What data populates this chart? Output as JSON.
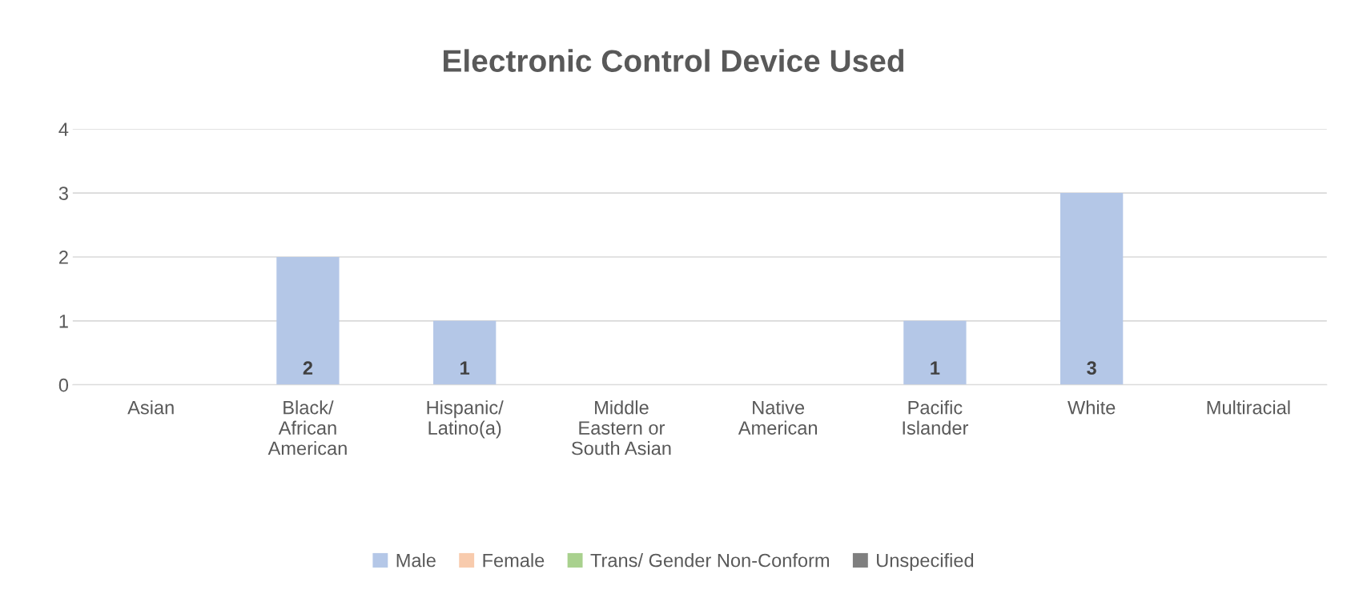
{
  "chart_data": {
    "type": "bar",
    "title": "Electronic Control Device Used",
    "categories": [
      "Asian",
      "Black/\nAfrican\nAmerican",
      "Hispanic/\nLatino(a)",
      "Middle\nEastern or\nSouth Asian",
      "Native\nAmerican",
      "Pacific\nIslander",
      "White",
      "Multiracial"
    ],
    "stacked": true,
    "series": [
      {
        "name": "Male",
        "color": "#b4c7e7",
        "values": [
          0,
          2,
          1,
          0,
          0,
          1,
          3,
          0
        ],
        "value_labels": [
          null,
          "2",
          "1",
          null,
          null,
          "1",
          "3",
          null
        ]
      },
      {
        "name": "Female",
        "color": "#f8cbad",
        "values": [
          0,
          0,
          0,
          0,
          0,
          0,
          0,
          0
        ]
      },
      {
        "name": "Trans/ Gender Non-Conform",
        "color": "#a9d18e",
        "values": [
          0,
          0,
          0,
          0,
          0,
          0,
          0,
          0
        ]
      },
      {
        "name": "Unspecified",
        "color": "#7f7f7f",
        "values": [
          0,
          0,
          0,
          0,
          0,
          0,
          0,
          0
        ]
      }
    ],
    "ylim": [
      0,
      4
    ],
    "yticks": [
      0,
      1,
      2,
      3,
      4
    ],
    "grid": "y",
    "legend": "bottom"
  }
}
